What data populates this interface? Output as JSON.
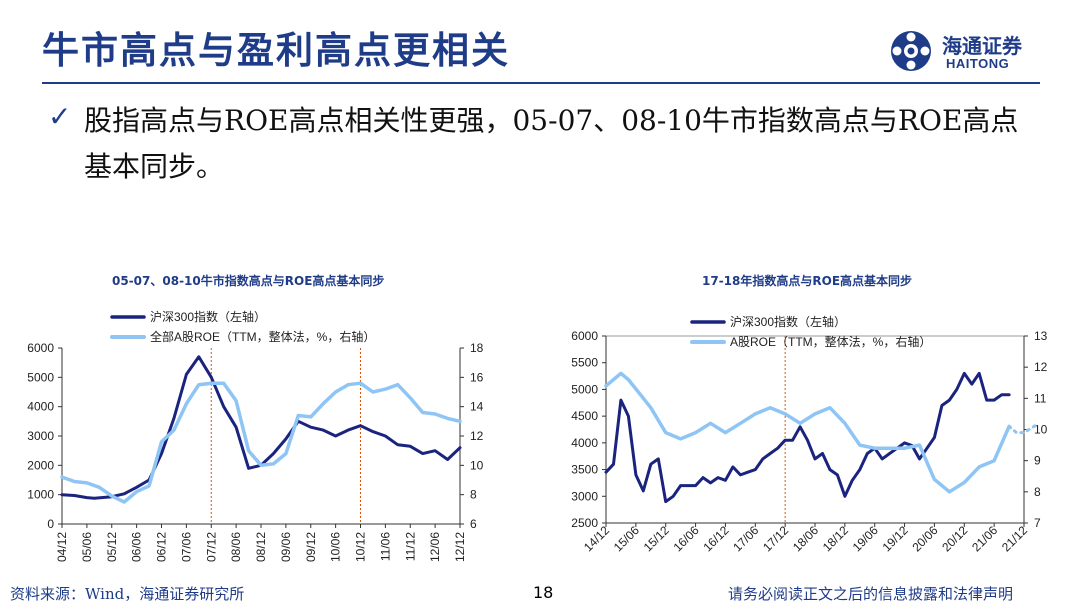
{
  "header": {
    "title": "牛市高点与盈利高点更相关",
    "logo_cn": "海通证券",
    "logo_en": "HAITONG"
  },
  "bullet": {
    "mark": "✓",
    "text": "股指高点与ROE高点相关性更强，05-07、08-10牛市指数高点与ROE高点基本同步。"
  },
  "footer": {
    "source": "资料来源：Wind，海通证券研究所",
    "page": "18",
    "disclaimer": "请务必阅读正文之后的信息披露和法律声明"
  },
  "colors": {
    "dark_series": "#1A237E",
    "light_series": "#8EC5F5",
    "vline": "#E65100",
    "brand": "#1F3C88"
  },
  "chart_data": [
    {
      "type": "line",
      "title": "05-07、08-10牛市指数高点与ROE高点基本同步",
      "x_ticks": [
        "04/12",
        "05/06",
        "05/12",
        "06/06",
        "06/12",
        "07/06",
        "07/12",
        "08/06",
        "08/12",
        "09/06",
        "09/12",
        "10/06",
        "10/12",
        "11/06",
        "11/12",
        "12/06",
        "12/12"
      ],
      "y_left": {
        "range": [
          0,
          6000
        ],
        "ticks": [
          0,
          1000,
          2000,
          3000,
          4000,
          5000,
          6000
        ]
      },
      "y_right": {
        "range": [
          6,
          18
        ],
        "ticks": [
          6,
          8,
          10,
          12,
          14,
          16,
          18
        ]
      },
      "vlines": [
        "07/12",
        "10/12"
      ],
      "series": [
        {
          "name": "沪深300指数（左轴）",
          "axis": "left",
          "color": "#1A237E",
          "width": 3,
          "x": [
            0,
            0.5,
            1,
            1.3,
            2,
            2.5,
            3,
            3.5,
            4,
            4.5,
            5,
            5.5,
            6,
            6.5,
            7,
            7.5,
            8,
            8.5,
            9,
            9.5,
            10,
            10.5,
            11,
            11.5,
            12,
            12.5,
            13,
            13.5,
            14,
            14.5,
            15,
            15.5,
            16
          ],
          "y": [
            1000,
            970,
            900,
            880,
            930,
            1030,
            1250,
            1500,
            2400,
            3600,
            5100,
            5700,
            5000,
            4000,
            3300,
            1900,
            2000,
            2400,
            2900,
            3500,
            3300,
            3200,
            3000,
            3200,
            3350,
            3150,
            3000,
            2700,
            2650,
            2400,
            2500,
            2200,
            2600
          ]
        },
        {
          "name": "全部A股ROE（TTM，整体法，%，右轴）",
          "axis": "right",
          "color": "#8EC5F5",
          "width": 3.5,
          "x": [
            0,
            0.5,
            1,
            1.5,
            2,
            2.5,
            3,
            3.5,
            4,
            4.5,
            5,
            5.5,
            6,
            6.5,
            7,
            7.5,
            8,
            8.5,
            9,
            9.5,
            10,
            10.5,
            11,
            11.5,
            12,
            12.5,
            13,
            13.5,
            14,
            14.5,
            15,
            15.5,
            16
          ],
          "y": [
            9.2,
            8.9,
            8.8,
            8.5,
            7.9,
            7.5,
            8.2,
            8.6,
            11.6,
            12.4,
            14.2,
            15.5,
            15.6,
            15.6,
            14.4,
            11.0,
            10.0,
            10.1,
            10.8,
            13.4,
            13.3,
            14.2,
            15.0,
            15.5,
            15.6,
            15.0,
            15.2,
            15.5,
            14.6,
            13.6,
            13.5,
            13.2,
            13.0
          ]
        }
      ]
    },
    {
      "type": "line",
      "title": "17-18年指数高点与ROE高点基本同步",
      "x_ticks": [
        "14/12",
        "15/06",
        "15/12",
        "16/06",
        "16/12",
        "17/06",
        "17/12",
        "18/06",
        "18/12",
        "19/06",
        "19/12",
        "20/06",
        "20/12",
        "21/06",
        "21/12"
      ],
      "y_left": {
        "range": [
          2500,
          6000
        ],
        "ticks": [
          2500,
          3000,
          3500,
          4000,
          4500,
          5000,
          5500,
          6000
        ]
      },
      "y_right": {
        "range": [
          7,
          13
        ],
        "ticks": [
          7,
          8,
          9,
          10,
          11,
          12,
          13
        ]
      },
      "vlines": [
        "17/12"
      ],
      "series": [
        {
          "name": "沪深300指数（左轴）",
          "axis": "left",
          "color": "#1A237E",
          "width": 3,
          "x": [
            0,
            0.25,
            0.5,
            0.75,
            1,
            1.25,
            1.5,
            1.75,
            2,
            2.25,
            2.5,
            2.75,
            3,
            3.25,
            3.5,
            3.75,
            4,
            4.25,
            4.5,
            4.75,
            5,
            5.25,
            5.5,
            5.75,
            6,
            6.25,
            6.5,
            6.75,
            7,
            7.25,
            7.5,
            7.75,
            8,
            8.25,
            8.5,
            8.75,
            9,
            9.25,
            9.5,
            9.75,
            10,
            10.25,
            10.5,
            10.75,
            11,
            11.25,
            11.5,
            11.75,
            12,
            12.25,
            12.5,
            12.75,
            13,
            13.25,
            13.5
          ],
          "y": [
            3450,
            3600,
            4800,
            4500,
            3400,
            3100,
            3600,
            3700,
            2900,
            3000,
            3200,
            3200,
            3200,
            3350,
            3250,
            3350,
            3300,
            3550,
            3400,
            3450,
            3500,
            3700,
            3800,
            3900,
            4050,
            4050,
            4300,
            4050,
            3700,
            3800,
            3500,
            3400,
            3000,
            3300,
            3500,
            3800,
            3900,
            3700,
            3800,
            3900,
            4000,
            3950,
            3700,
            3900,
            4100,
            4700,
            4800,
            5000,
            5300,
            5100,
            5300,
            4800,
            4800,
            4900,
            4900
          ]
        },
        {
          "name": "A股ROE（TTM，整体法，%，右轴）",
          "axis": "right",
          "color": "#8EC5F5",
          "width": 3.5,
          "x": [
            0,
            0.5,
            0.75,
            1,
            1.5,
            2,
            2.5,
            3,
            3.5,
            4,
            4.5,
            5,
            5.5,
            6,
            6.5,
            7,
            7.5,
            8,
            8.5,
            9,
            9.5,
            10,
            10.5,
            11,
            11.5,
            12,
            12.5,
            13,
            13.5
          ],
          "y": [
            11.4,
            11.8,
            11.6,
            11.3,
            10.7,
            9.9,
            9.7,
            9.9,
            10.2,
            9.9,
            10.2,
            10.5,
            10.7,
            10.5,
            10.2,
            10.5,
            10.7,
            10.2,
            9.5,
            9.4,
            9.4,
            9.4,
            9.5,
            8.4,
            8.0,
            8.3,
            8.8,
            9.0,
            10.1
          ]
        }
      ],
      "projection": {
        "x": [
          13.5,
          13.75,
          14,
          14.5
        ],
        "y": [
          10.1,
          9.9,
          9.9,
          10.2
        ]
      }
    }
  ]
}
